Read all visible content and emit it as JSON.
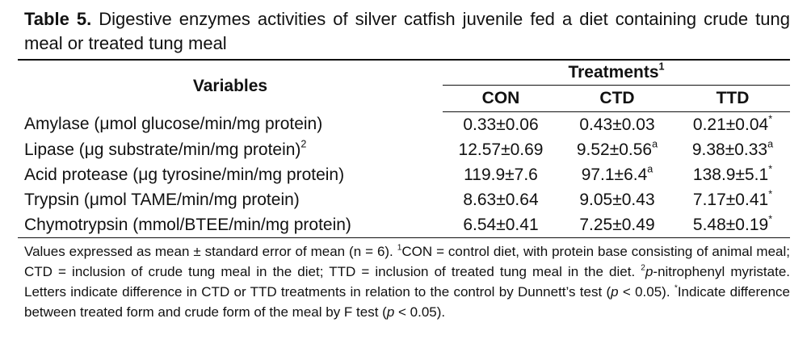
{
  "title": {
    "label": "Table 5.",
    "text": "Digestive enzymes activities of silver catfish juvenile fed a diet containing crude tung meal or treated tung meal"
  },
  "table": {
    "header": {
      "variables": "Variables",
      "group": "Treatments",
      "group_sup": "1",
      "columns": [
        "CON",
        "CTD",
        "TTD"
      ]
    },
    "rows": [
      {
        "variable": "Amylase (μmol glucose/min/mg protein)",
        "values": [
          {
            "text": "0.33±0.06"
          },
          {
            "text": "0.43±0.03"
          },
          {
            "text": "0.21±0.04",
            "sup": "*"
          }
        ]
      },
      {
        "variable": "Lipase (μg substrate/min/mg protein)",
        "variable_sup": "2",
        "values": [
          {
            "text": "12.57±0.69"
          },
          {
            "text": "9.52±0.56",
            "sup": "a"
          },
          {
            "text": "9.38±0.33",
            "sup": "a"
          }
        ]
      },
      {
        "variable": "Acid protease (μg tyrosine/min/mg protein)",
        "values": [
          {
            "text": "119.9±7.6"
          },
          {
            "text": "97.1±6.4",
            "sup": "a"
          },
          {
            "text": "138.9±5.1",
            "sup": "*"
          }
        ]
      },
      {
        "variable": "Trypsin (μmol TAME/min/mg protein)",
        "values": [
          {
            "text": "8.63±0.64"
          },
          {
            "text": "9.05±0.43"
          },
          {
            "text": "7.17±0.41",
            "sup": "*"
          }
        ]
      },
      {
        "variable": "Chymotrypsin (mmol/BTEE/min/mg protein)",
        "values": [
          {
            "text": "6.54±0.41"
          },
          {
            "text": "7.25±0.49"
          },
          {
            "text": "5.48±0.19",
            "sup": "*"
          }
        ]
      }
    ]
  },
  "footnote": [
    {
      "text": "Values expressed as mean ± standard error of mean (n = 6). "
    },
    {
      "text": "1",
      "style": "sup"
    },
    {
      "text": "CON = control diet, with protein base consisting of animal meal; CTD = inclusion of crude tung meal in the diet; TTD = inclusion of treated tung meal in the diet. "
    },
    {
      "text": "2",
      "style": "sup"
    },
    {
      "text": "p",
      "style": "italic"
    },
    {
      "text": "-nitrophenyl myristate. Letters indicate difference in CTD or TTD treatments in relation to the control by Dunnett’s test ("
    },
    {
      "text": "p",
      "style": "italic"
    },
    {
      "text": " < 0.05). "
    },
    {
      "text": "*",
      "style": "sup"
    },
    {
      "text": "Indicate difference between treated form and crude form of the meal by F test ("
    },
    {
      "text": "p",
      "style": "italic"
    },
    {
      "text": " < 0.05)."
    }
  ]
}
